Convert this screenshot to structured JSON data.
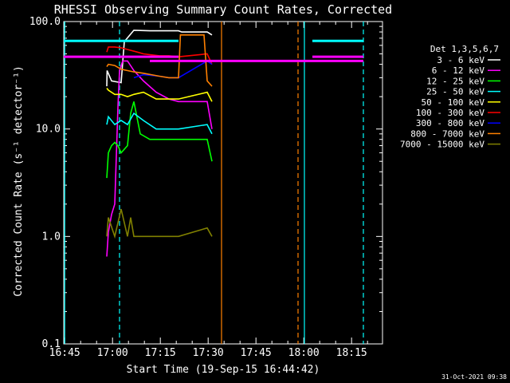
{
  "chart_data": {
    "type": "line",
    "title": "RHESSI Observing Summary Count Rates, Corrected",
    "xlabel": "Start Time (19-Sep-15 16:44:42)",
    "ylabel": "Corrected Count Rate (s⁻¹ detector⁻¹)",
    "x_unit": "minutes from 16:44:42",
    "xlim": [
      0,
      100
    ],
    "ylim": [
      0.1,
      100
    ],
    "ylog": true,
    "x_ticks": [
      "16:45",
      "17:00",
      "17:15",
      "17:30",
      "17:45",
      "18:00",
      "18:15"
    ],
    "y_ticks": [
      "0.1",
      "1.0",
      "10.0",
      "100.0"
    ],
    "legend_title": "Det 1,3,5,6,7",
    "legend_position": "right",
    "series": [
      {
        "name": "3 - 6 keV",
        "color": "#ffffff",
        "x": [
          13.5,
          13.6,
          15,
          18,
          19,
          22,
          27,
          33,
          36,
          37,
          45,
          46.5
        ],
        "y": [
          25,
          35,
          28,
          27,
          65,
          83,
          82,
          82,
          82,
          80,
          80,
          75
        ]
      },
      {
        "name": "6 - 12 keV",
        "color": "#ff00ff",
        "x": [
          13.5,
          14,
          15,
          16,
          17,
          17.5,
          18.5,
          20,
          22,
          25,
          29,
          33,
          36,
          45,
          46.5
        ],
        "y": [
          0.65,
          1.1,
          1.6,
          2,
          16,
          35,
          43,
          43,
          35,
          28,
          22,
          19,
          18,
          18,
          10
        ]
      },
      {
        "name": "12 - 25 keV",
        "color": "#00ff00",
        "x": [
          13.5,
          14,
          15,
          16,
          17,
          18,
          20,
          21,
          22,
          24,
          27,
          30,
          33,
          36,
          45,
          46.5
        ],
        "y": [
          3.5,
          6,
          7,
          7.5,
          7,
          6,
          7,
          14,
          18,
          9,
          8,
          8,
          8,
          8,
          8,
          5
        ]
      },
      {
        "name": "25 - 50 keV",
        "color": "#00ffff",
        "x": [
          13.5,
          14,
          16,
          18,
          20,
          22,
          25,
          29,
          33,
          36,
          45,
          46.5
        ],
        "y": [
          11,
          13,
          11,
          12,
          11,
          14,
          12,
          10,
          10,
          10,
          11,
          9
        ]
      },
      {
        "name": "50 - 100 keV",
        "color": "#ffff00",
        "x": [
          13.5,
          14,
          16,
          18,
          20,
          22,
          25,
          29,
          33,
          36,
          45,
          46.5
        ],
        "y": [
          24,
          23,
          21,
          21,
          20,
          21,
          22,
          19,
          19,
          19,
          22,
          18
        ]
      },
      {
        "name": "100 - 300 keV",
        "color": "#ff0000",
        "x": [
          13.5,
          14,
          16,
          18,
          20,
          23,
          25,
          30,
          33,
          36,
          45,
          46.5
        ],
        "y": [
          52,
          58,
          58,
          57,
          55,
          52,
          50,
          48,
          48,
          47,
          50,
          40
        ]
      },
      {
        "name": "300 - 800 keV",
        "color": "#0000ff",
        "x": [
          22,
          25,
          30,
          33,
          36,
          45,
          46.5
        ],
        "y": [
          30,
          32,
          31,
          30,
          30,
          43,
          40
        ]
      },
      {
        "name": "800 - 7000 keV",
        "color": "#ff8000",
        "x": [
          13.5,
          14,
          16,
          18,
          22,
          25,
          30,
          33,
          36,
          36.6,
          38,
          44,
          45,
          46.5
        ],
        "y": [
          38,
          40,
          39,
          36,
          34,
          33,
          31,
          30,
          30,
          75,
          75,
          75,
          28,
          25
        ]
      },
      {
        "name": "7000 - 15000 keV",
        "color": "#808000",
        "x": [
          13.5,
          14,
          16,
          18,
          20,
          21,
          22,
          25,
          30,
          33,
          36,
          45,
          46.5
        ],
        "y": [
          1.0,
          1.5,
          1.0,
          1.8,
          1.0,
          1.5,
          1.0,
          1.0,
          1.0,
          1.0,
          1.0,
          1.2,
          1.0
        ]
      }
    ],
    "hlines": [
      {
        "color": "#00ffff",
        "y": 66,
        "segments": [
          [
            0,
            36
          ],
          [
            78,
            94
          ]
        ]
      },
      {
        "color": "#ff00ff",
        "y": 47,
        "segments": [
          [
            0,
            36
          ],
          [
            78,
            94
          ]
        ]
      },
      {
        "color": "#ff00ff",
        "y": 43,
        "segments": [
          [
            27,
            94
          ]
        ]
      }
    ],
    "vlines": [
      {
        "color": "#00ffff",
        "x": 0.3,
        "style": "solid"
      },
      {
        "color": "#00ffff",
        "x": 17.5,
        "style": "dashed"
      },
      {
        "color": "#ff8000",
        "x": 49.5,
        "style": "solid"
      },
      {
        "color": "#ff8000",
        "x": 73.5,
        "style": "dashed"
      },
      {
        "color": "#00ffff",
        "x": 75.5,
        "style": "solid"
      },
      {
        "color": "#00ffff",
        "x": 94,
        "style": "dashed"
      }
    ]
  },
  "timestamp": "31-Oct-2021 09:38"
}
